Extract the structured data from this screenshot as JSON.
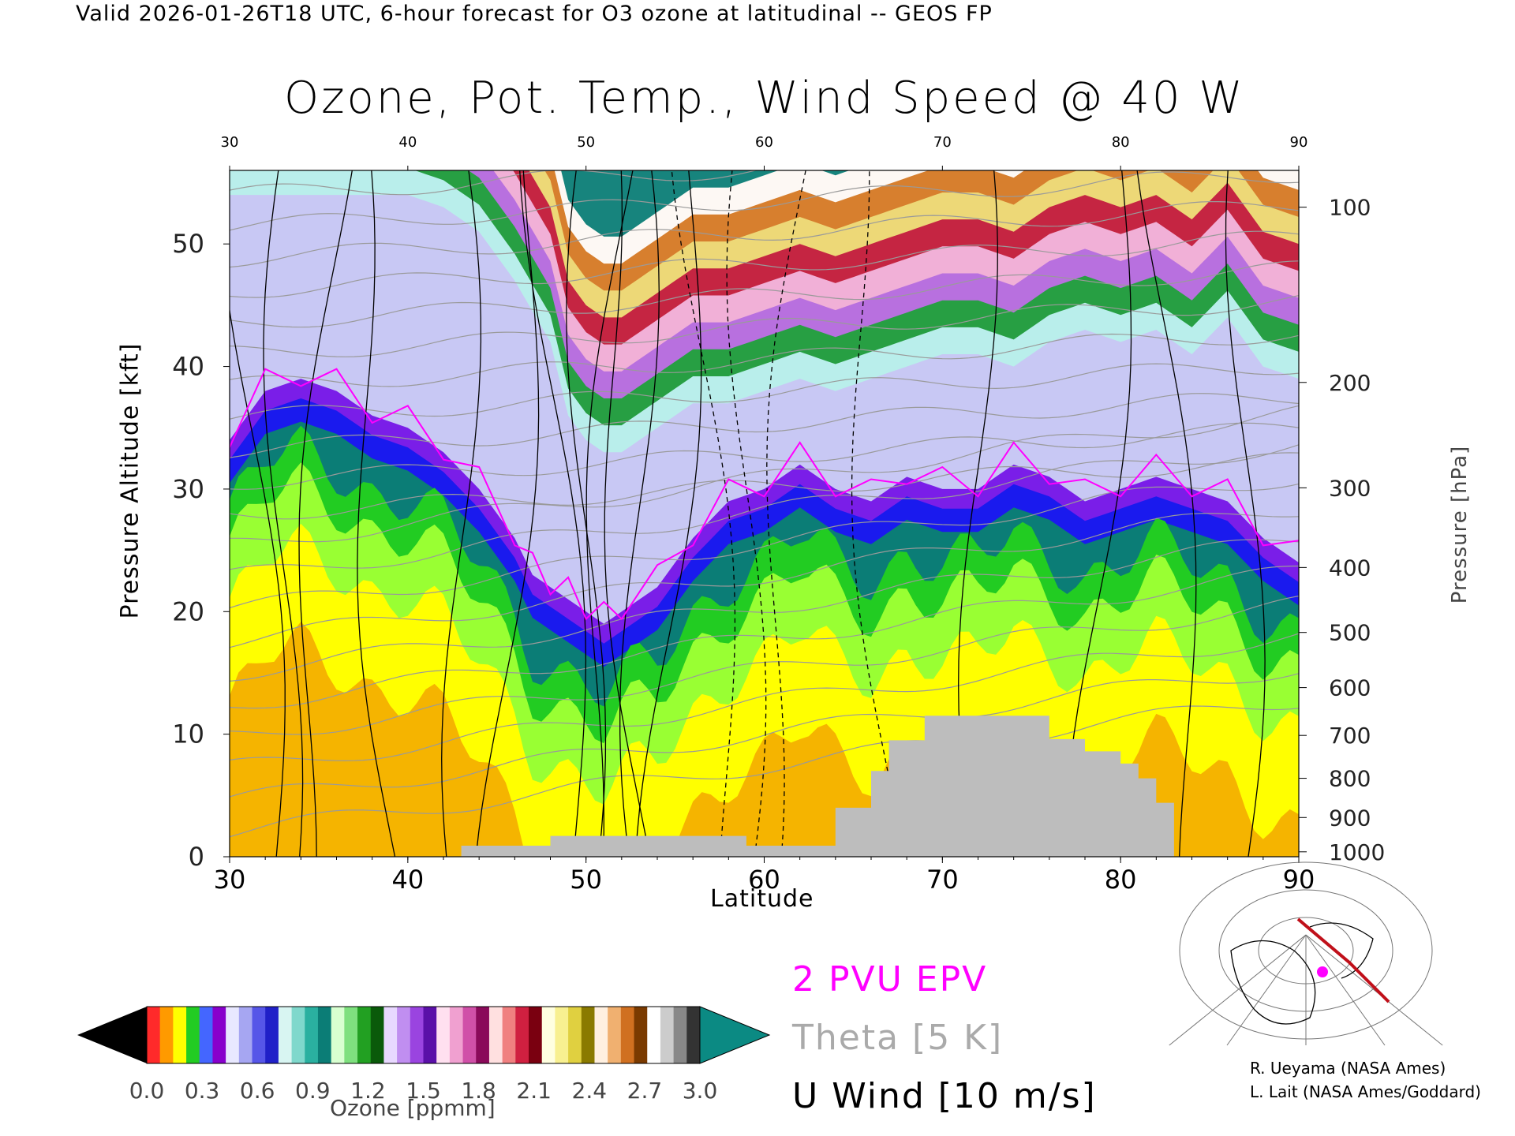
{
  "header": "Valid 2026-01-26T18 UTC, 6-hour forecast for O3 ozone at latitudinal -- GEOS FP",
  "chart_data": {
    "type": "heatmap",
    "title": "Ozone, Pot. Temp., Wind Speed @ 40 W",
    "xlabel": "Latitude",
    "ylabel": "Pressure Altitude [kft]",
    "ylabel_right": "Pressure [hPa]",
    "xlim": [
      30,
      90
    ],
    "ylim": [
      0,
      56
    ],
    "x_ticks": [
      "30",
      "40",
      "50",
      "60",
      "70",
      "80",
      "90"
    ],
    "y_ticks": [
      "0",
      "10",
      "20",
      "30",
      "40",
      "50"
    ],
    "pressure_ticks": [
      {
        "label": "100",
        "kft": 53.0
      },
      {
        "label": "200",
        "kft": 38.7
      },
      {
        "label": "300",
        "kft": 30.1
      },
      {
        "label": "400",
        "kft": 23.6
      },
      {
        "label": "500",
        "kft": 18.3
      },
      {
        "label": "600",
        "kft": 13.8
      },
      {
        "label": "700",
        "kft": 9.9
      },
      {
        "label": "800",
        "kft": 6.4
      },
      {
        "label": "900",
        "kft": 3.2
      },
      {
        "label": "1000",
        "kft": 0.4
      }
    ],
    "tropopause_kft": [
      [
        30,
        34
      ],
      [
        32,
        38
      ],
      [
        34,
        39
      ],
      [
        36,
        38
      ],
      [
        38,
        36
      ],
      [
        40,
        35
      ],
      [
        42,
        33
      ],
      [
        44,
        30
      ],
      [
        46,
        26
      ],
      [
        47,
        23
      ],
      [
        48,
        22
      ],
      [
        49,
        21
      ],
      [
        50,
        20
      ],
      [
        51,
        19
      ],
      [
        52,
        20
      ],
      [
        54,
        22
      ],
      [
        56,
        26
      ],
      [
        58,
        29
      ],
      [
        60,
        30
      ],
      [
        62,
        32
      ],
      [
        64,
        30
      ],
      [
        66,
        29
      ],
      [
        68,
        31
      ],
      [
        70,
        30
      ],
      [
        72,
        30
      ],
      [
        74,
        32
      ],
      [
        76,
        31
      ],
      [
        78,
        29
      ],
      [
        80,
        30
      ],
      [
        82,
        31
      ],
      [
        84,
        30
      ],
      [
        86,
        29
      ],
      [
        88,
        26
      ],
      [
        90,
        24
      ]
    ],
    "stratosphere_top_kft": [
      [
        30,
        54
      ],
      [
        36,
        54
      ],
      [
        40,
        54
      ],
      [
        42,
        53
      ],
      [
        44,
        51
      ],
      [
        46,
        47
      ],
      [
        48,
        42
      ],
      [
        49,
        36
      ],
      [
        50,
        34
      ],
      [
        51,
        33
      ],
      [
        52,
        33
      ],
      [
        54,
        35
      ],
      [
        56,
        37
      ],
      [
        58,
        37
      ],
      [
        60,
        38
      ],
      [
        62,
        39
      ],
      [
        64,
        38
      ],
      [
        66,
        39
      ],
      [
        68,
        40
      ],
      [
        70,
        41
      ],
      [
        72,
        41
      ],
      [
        74,
        40
      ],
      [
        76,
        42
      ],
      [
        78,
        43
      ],
      [
        80,
        42
      ],
      [
        82,
        43
      ],
      [
        84,
        41
      ],
      [
        86,
        44
      ],
      [
        88,
        40
      ],
      [
        90,
        39
      ]
    ],
    "terrain_kft": [
      [
        30,
        0
      ],
      [
        43,
        0
      ],
      [
        43,
        0.9
      ],
      [
        48,
        0.9
      ],
      [
        48,
        1.7
      ],
      [
        59,
        1.7
      ],
      [
        59,
        0.9
      ],
      [
        64,
        0.9
      ],
      [
        64,
        4.0
      ],
      [
        66,
        4.0
      ],
      [
        66,
        7.0
      ],
      [
        67,
        7.0
      ],
      [
        67,
        9.5
      ],
      [
        69,
        9.5
      ],
      [
        69,
        11.5
      ],
      [
        76,
        11.5
      ],
      [
        76,
        9.6
      ],
      [
        78,
        9.6
      ],
      [
        78,
        8.6
      ],
      [
        80,
        8.6
      ],
      [
        80,
        7.6
      ],
      [
        81,
        7.6
      ],
      [
        81,
        6.4
      ],
      [
        82,
        6.4
      ],
      [
        82,
        4.4
      ],
      [
        83,
        4.4
      ],
      [
        83,
        0
      ],
      [
        90,
        0
      ]
    ],
    "colorbar": {
      "label": "Ozone [ppmm]",
      "ticks": [
        "0.0",
        "0.3",
        "0.6",
        "0.9",
        "1.2",
        "1.5",
        "1.8",
        "2.1",
        "2.4",
        "2.7",
        "3.0"
      ],
      "range": [
        0.0,
        3.0
      ]
    },
    "colors": {
      "terrain": "#bdbdbd",
      "epv": "#ff00ff",
      "theta": "#9a9a9a",
      "wind": "#000000",
      "band_orange": "#f5b400",
      "band_yellow": "#ffff00",
      "band_lightgreen": "#99ff33",
      "band_green": "#22cc22",
      "band_teal": "#0b7d76",
      "band_blue": "#1a1aee",
      "band_purple": "#7a1ee8",
      "band_lavender": "#c8c8f4"
    },
    "legend": [
      {
        "name": "2 PVU EPV",
        "color": "#ff00ff"
      },
      {
        "name": "Theta [5 K]",
        "color": "#aaaaaa"
      },
      {
        "name": "U Wind [10 m/s]",
        "color": "#000000"
      }
    ]
  },
  "credits": [
    "R. Ueyama (NASA Ames)",
    "L. Lait (NASA Ames/Goddard)"
  ]
}
